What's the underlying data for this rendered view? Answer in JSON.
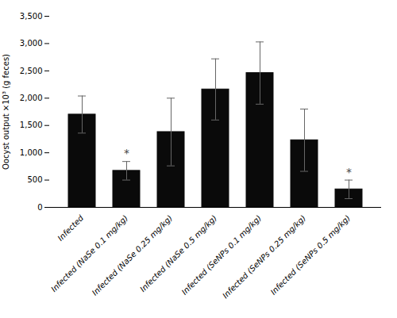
{
  "chart_data": {
    "type": "bar",
    "categories": [
      "Infected",
      "Infected (NaSe 0.1 mg/kg)",
      "Infected (NaSe 0.25 mg/kg)",
      "Infected (NaSe 0.5 mg/kg)",
      "Infected (SeNPs 0.1 mg/kg)",
      "Infected (SeNPs 0.25 mg/kg)",
      "Infected (SeNPs 0.5 mg/kg)"
    ],
    "values": [
      1700,
      670,
      1380,
      2160,
      2460,
      1230,
      330
    ],
    "errors": [
      340,
      170,
      620,
      560,
      570,
      570,
      170
    ],
    "color": "#0a0a0a",
    "ylabel": "Oocyst output ×10³ (g feces)",
    "ylim": [
      0,
      3500
    ],
    "yticks": [
      0,
      500,
      {
        "value": 1000,
        "label": "1,000"
      },
      {
        "value": 1500,
        "label": "1,500"
      },
      {
        "value": 2000,
        "label": "2,000"
      },
      {
        "value": 2500,
        "label": "2,500"
      },
      {
        "value": 3000,
        "label": "3,000"
      },
      {
        "value": 3500,
        "label": "3,500"
      }
    ],
    "annotations": [
      {
        "x": "Infected (NaSe 0.1 mg/kg)",
        "text": "*"
      },
      {
        "x": "Infected (SeNPs 0.5 mg/kg)",
        "text": "*"
      }
    ],
    "grid": false
  }
}
